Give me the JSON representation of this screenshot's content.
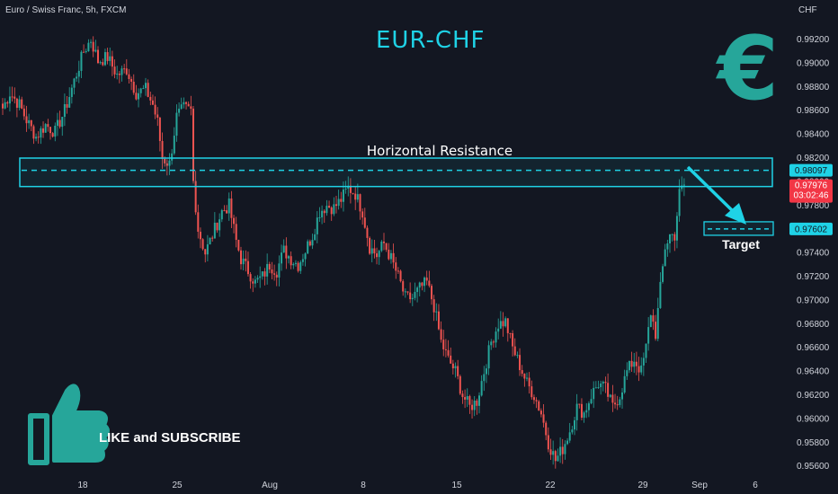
{
  "header": {
    "symbol_label": "Euro / Swiss Franc, 5h, FXCM",
    "pair_title": "EUR-CHF",
    "currency_axis_label": "CHF"
  },
  "annotations": {
    "resistance_label": "Horizontal Resistance",
    "target_label": "Target",
    "like_subscribe": "LIKE and SUBSCRIBE"
  },
  "price_tags": {
    "resistance": "0.98097",
    "current_price": "0.97976",
    "countdown": "03:02:46",
    "target": "0.97602"
  },
  "colors": {
    "background": "#131722",
    "up_candle": "#26a69a",
    "down_candle": "#ef5350",
    "accent_cyan": "#1fd2e6",
    "axis_text": "#d1d4dc",
    "current_price_tag": "#f23645",
    "thumb_icon": "#26a69a"
  },
  "icons": [
    "euro-icon",
    "thumbs-up-icon"
  ],
  "chart_data": {
    "type": "candlestick",
    "y_axis": {
      "ticks": [
        "0.99200",
        "0.99000",
        "0.98800",
        "0.98600",
        "0.98400",
        "0.98200",
        "0.98000",
        "0.97800",
        "0.97400",
        "0.97200",
        "0.97000",
        "0.96800",
        "0.96600",
        "0.96400",
        "0.96200",
        "0.96000",
        "0.95800",
        "0.95600"
      ],
      "range": [
        0.9551,
        0.9935
      ]
    },
    "x_axis": {
      "ticks": [
        "18",
        "25",
        "Aug",
        "8",
        "15",
        "22",
        "29",
        "Sep",
        "6"
      ]
    },
    "resistance_zone": {
      "low": 0.9796,
      "high": 0.982,
      "line": 0.98097
    },
    "target_level": 0.97602,
    "close_path": [
      [
        0,
        0.9862
      ],
      [
        3,
        0.9875
      ],
      [
        7,
        0.9865
      ],
      [
        10,
        0.9852
      ],
      [
        14,
        0.9838
      ],
      [
        18,
        0.9848
      ],
      [
        22,
        0.9842
      ],
      [
        26,
        0.986
      ],
      [
        30,
        0.9885
      ],
      [
        34,
        0.991
      ],
      [
        37,
        0.992
      ],
      [
        40,
        0.9902
      ],
      [
        44,
        0.9905
      ],
      [
        48,
        0.989
      ],
      [
        52,
        0.9895
      ],
      [
        56,
        0.9875
      ],
      [
        60,
        0.9878
      ],
      [
        63,
        0.9865
      ],
      [
        65,
        0.985
      ],
      [
        67,
        0.982
      ],
      [
        70,
        0.9815
      ],
      [
        73,
        0.9855
      ],
      [
        76,
        0.9862
      ],
      [
        79,
        0.986
      ],
      [
        80,
        0.98
      ],
      [
        82,
        0.976
      ],
      [
        85,
        0.974
      ],
      [
        88,
        0.9755
      ],
      [
        92,
        0.9775
      ],
      [
        95,
        0.978
      ],
      [
        98,
        0.975
      ],
      [
        100,
        0.9735
      ],
      [
        103,
        0.9725
      ],
      [
        106,
        0.9715
      ],
      [
        109,
        0.972
      ],
      [
        112,
        0.973
      ],
      [
        115,
        0.9725
      ],
      [
        118,
        0.9742
      ],
      [
        121,
        0.9735
      ],
      [
        124,
        0.973
      ],
      [
        127,
        0.9742
      ],
      [
        130,
        0.9755
      ],
      [
        133,
        0.9775
      ],
      [
        136,
        0.978
      ],
      [
        139,
        0.9778
      ],
      [
        142,
        0.9785
      ],
      [
        145,
        0.9795
      ],
      [
        148,
        0.979
      ],
      [
        151,
        0.9775
      ],
      [
        154,
        0.9745
      ],
      [
        157,
        0.9738
      ],
      [
        160,
        0.9748
      ],
      [
        163,
        0.9735
      ],
      [
        166,
        0.972
      ],
      [
        169,
        0.9702
      ],
      [
        172,
        0.9702
      ],
      [
        175,
        0.971
      ],
      [
        178,
        0.9715
      ],
      [
        181,
        0.9695
      ],
      [
        184,
        0.9665
      ],
      [
        187,
        0.965
      ],
      [
        190,
        0.964
      ],
      [
        193,
        0.962
      ],
      [
        196,
        0.961
      ],
      [
        199,
        0.9615
      ],
      [
        202,
        0.964
      ],
      [
        205,
        0.9665
      ],
      [
        208,
        0.968
      ],
      [
        211,
        0.9682
      ],
      [
        214,
        0.966
      ],
      [
        217,
        0.9645
      ],
      [
        220,
        0.963
      ],
      [
        223,
        0.962
      ],
      [
        226,
        0.9605
      ],
      [
        229,
        0.958
      ],
      [
        232,
        0.9565
      ],
      [
        235,
        0.9575
      ],
      [
        238,
        0.959
      ],
      [
        241,
        0.961
      ],
      [
        244,
        0.9605
      ],
      [
        247,
        0.962
      ],
      [
        250,
        0.963
      ],
      [
        253,
        0.9625
      ],
      [
        256,
        0.961
      ],
      [
        259,
        0.962
      ],
      [
        262,
        0.964
      ],
      [
        265,
        0.965
      ],
      [
        268,
        0.964
      ],
      [
        270,
        0.966
      ],
      [
        272,
        0.969
      ],
      [
        274,
        0.9672
      ],
      [
        276,
        0.971
      ],
      [
        278,
        0.9745
      ],
      [
        280,
        0.9755
      ],
      [
        282,
        0.9755
      ],
      [
        284,
        0.979
      ],
      [
        286,
        0.9798
      ]
    ]
  }
}
